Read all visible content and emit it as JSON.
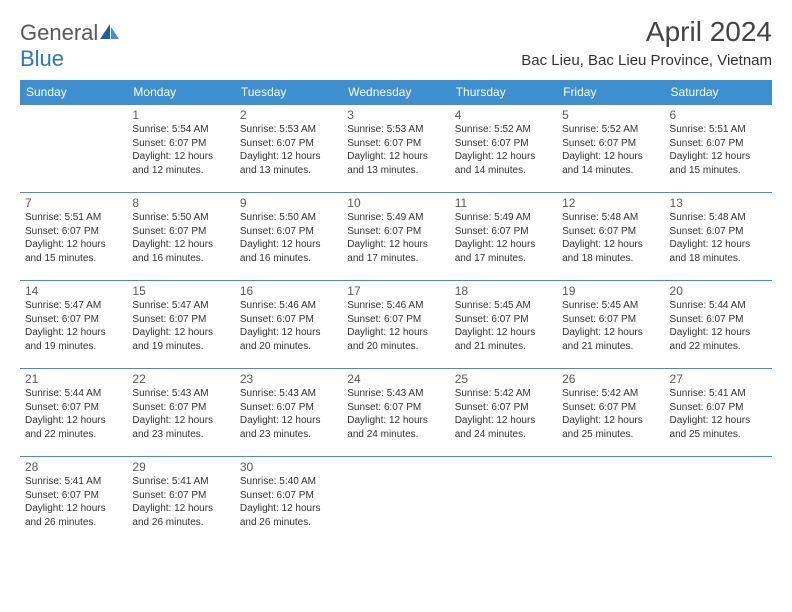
{
  "logo": {
    "text1": "General",
    "text2": "Blue"
  },
  "title": "April 2024",
  "location": "Bac Lieu, Bac Lieu Province, Vietnam",
  "header_bg": "#3d8fcf",
  "header_text": "#ffffff",
  "divider_color": "#3d8fcf",
  "text_color": "#333333",
  "daynum_color": "#5a5a5a",
  "cell_fontsize": 10,
  "daynum_fontsize": 12,
  "daynames": [
    "Sunday",
    "Monday",
    "Tuesday",
    "Wednesday",
    "Thursday",
    "Friday",
    "Saturday"
  ],
  "weeks": [
    [
      null,
      {
        "n": "1",
        "sr": "5:54 AM",
        "ss": "6:07 PM",
        "dl": "12 hours and 12 minutes."
      },
      {
        "n": "2",
        "sr": "5:53 AM",
        "ss": "6:07 PM",
        "dl": "12 hours and 13 minutes."
      },
      {
        "n": "3",
        "sr": "5:53 AM",
        "ss": "6:07 PM",
        "dl": "12 hours and 13 minutes."
      },
      {
        "n": "4",
        "sr": "5:52 AM",
        "ss": "6:07 PM",
        "dl": "12 hours and 14 minutes."
      },
      {
        "n": "5",
        "sr": "5:52 AM",
        "ss": "6:07 PM",
        "dl": "12 hours and 14 minutes."
      },
      {
        "n": "6",
        "sr": "5:51 AM",
        "ss": "6:07 PM",
        "dl": "12 hours and 15 minutes."
      }
    ],
    [
      {
        "n": "7",
        "sr": "5:51 AM",
        "ss": "6:07 PM",
        "dl": "12 hours and 15 minutes."
      },
      {
        "n": "8",
        "sr": "5:50 AM",
        "ss": "6:07 PM",
        "dl": "12 hours and 16 minutes."
      },
      {
        "n": "9",
        "sr": "5:50 AM",
        "ss": "6:07 PM",
        "dl": "12 hours and 16 minutes."
      },
      {
        "n": "10",
        "sr": "5:49 AM",
        "ss": "6:07 PM",
        "dl": "12 hours and 17 minutes."
      },
      {
        "n": "11",
        "sr": "5:49 AM",
        "ss": "6:07 PM",
        "dl": "12 hours and 17 minutes."
      },
      {
        "n": "12",
        "sr": "5:48 AM",
        "ss": "6:07 PM",
        "dl": "12 hours and 18 minutes."
      },
      {
        "n": "13",
        "sr": "5:48 AM",
        "ss": "6:07 PM",
        "dl": "12 hours and 18 minutes."
      }
    ],
    [
      {
        "n": "14",
        "sr": "5:47 AM",
        "ss": "6:07 PM",
        "dl": "12 hours and 19 minutes."
      },
      {
        "n": "15",
        "sr": "5:47 AM",
        "ss": "6:07 PM",
        "dl": "12 hours and 19 minutes."
      },
      {
        "n": "16",
        "sr": "5:46 AM",
        "ss": "6:07 PM",
        "dl": "12 hours and 20 minutes."
      },
      {
        "n": "17",
        "sr": "5:46 AM",
        "ss": "6:07 PM",
        "dl": "12 hours and 20 minutes."
      },
      {
        "n": "18",
        "sr": "5:45 AM",
        "ss": "6:07 PM",
        "dl": "12 hours and 21 minutes."
      },
      {
        "n": "19",
        "sr": "5:45 AM",
        "ss": "6:07 PM",
        "dl": "12 hours and 21 minutes."
      },
      {
        "n": "20",
        "sr": "5:44 AM",
        "ss": "6:07 PM",
        "dl": "12 hours and 22 minutes."
      }
    ],
    [
      {
        "n": "21",
        "sr": "5:44 AM",
        "ss": "6:07 PM",
        "dl": "12 hours and 22 minutes."
      },
      {
        "n": "22",
        "sr": "5:43 AM",
        "ss": "6:07 PM",
        "dl": "12 hours and 23 minutes."
      },
      {
        "n": "23",
        "sr": "5:43 AM",
        "ss": "6:07 PM",
        "dl": "12 hours and 23 minutes."
      },
      {
        "n": "24",
        "sr": "5:43 AM",
        "ss": "6:07 PM",
        "dl": "12 hours and 24 minutes."
      },
      {
        "n": "25",
        "sr": "5:42 AM",
        "ss": "6:07 PM",
        "dl": "12 hours and 24 minutes."
      },
      {
        "n": "26",
        "sr": "5:42 AM",
        "ss": "6:07 PM",
        "dl": "12 hours and 25 minutes."
      },
      {
        "n": "27",
        "sr": "5:41 AM",
        "ss": "6:07 PM",
        "dl": "12 hours and 25 minutes."
      }
    ],
    [
      {
        "n": "28",
        "sr": "5:41 AM",
        "ss": "6:07 PM",
        "dl": "12 hours and 26 minutes."
      },
      {
        "n": "29",
        "sr": "5:41 AM",
        "ss": "6:07 PM",
        "dl": "12 hours and 26 minutes."
      },
      {
        "n": "30",
        "sr": "5:40 AM",
        "ss": "6:07 PM",
        "dl": "12 hours and 26 minutes."
      },
      null,
      null,
      null,
      null
    ]
  ],
  "labels": {
    "sunrise": "Sunrise:",
    "sunset": "Sunset:",
    "daylight": "Daylight:"
  }
}
